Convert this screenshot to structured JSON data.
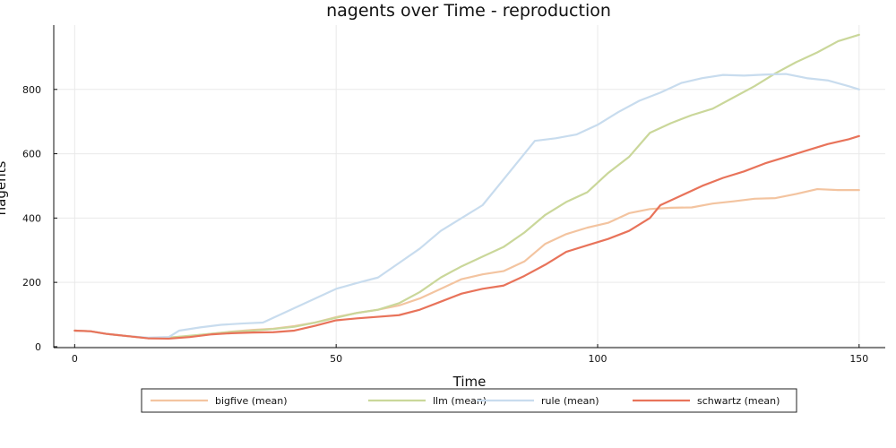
{
  "chart_data": {
    "type": "line",
    "title": "nagents over Time - reproduction",
    "xlabel": "Time",
    "ylabel": "nagents",
    "xlim": [
      -4,
      155
    ],
    "ylim": [
      -3,
      1000
    ],
    "xticks": [
      0,
      50,
      100,
      150
    ],
    "yticks": [
      0,
      200,
      400,
      600,
      800
    ],
    "grid": true,
    "legend": "bottom-outside",
    "series": [
      {
        "name": "bigfive (mean)",
        "color": "#f3c4a0",
        "points": [
          [
            0,
            50
          ],
          [
            3,
            48
          ],
          [
            6,
            40
          ],
          [
            10,
            33
          ],
          [
            14,
            27
          ],
          [
            18,
            28
          ],
          [
            22,
            33
          ],
          [
            26,
            40
          ],
          [
            30,
            47
          ],
          [
            34,
            52
          ],
          [
            38,
            56
          ],
          [
            42,
            64
          ],
          [
            46,
            75
          ],
          [
            50,
            92
          ],
          [
            54,
            105
          ],
          [
            58,
            115
          ],
          [
            62,
            128
          ],
          [
            66,
            150
          ],
          [
            70,
            180
          ],
          [
            74,
            210
          ],
          [
            78,
            225
          ],
          [
            82,
            235
          ],
          [
            86,
            265
          ],
          [
            90,
            320
          ],
          [
            94,
            350
          ],
          [
            98,
            370
          ],
          [
            102,
            385
          ],
          [
            106,
            415
          ],
          [
            110,
            428
          ],
          [
            114,
            432
          ],
          [
            118,
            433
          ],
          [
            122,
            445
          ],
          [
            126,
            452
          ],
          [
            130,
            460
          ],
          [
            134,
            462
          ],
          [
            138,
            475
          ],
          [
            142,
            490
          ],
          [
            146,
            487
          ],
          [
            150,
            487
          ]
        ]
      },
      {
        "name": "llm (mean)",
        "color": "#cad79a",
        "points": [
          [
            0,
            50
          ],
          [
            3,
            48
          ],
          [
            6,
            40
          ],
          [
            10,
            33
          ],
          [
            14,
            27
          ],
          [
            18,
            28
          ],
          [
            22,
            34
          ],
          [
            26,
            40
          ],
          [
            30,
            46
          ],
          [
            34,
            50
          ],
          [
            38,
            55
          ],
          [
            42,
            62
          ],
          [
            46,
            75
          ],
          [
            50,
            90
          ],
          [
            54,
            105
          ],
          [
            58,
            115
          ],
          [
            62,
            135
          ],
          [
            66,
            170
          ],
          [
            70,
            215
          ],
          [
            74,
            250
          ],
          [
            78,
            280
          ],
          [
            82,
            310
          ],
          [
            86,
            355
          ],
          [
            90,
            410
          ],
          [
            94,
            450
          ],
          [
            98,
            480
          ],
          [
            102,
            540
          ],
          [
            106,
            590
          ],
          [
            110,
            665
          ],
          [
            114,
            695
          ],
          [
            118,
            720
          ],
          [
            122,
            740
          ],
          [
            126,
            775
          ],
          [
            130,
            810
          ],
          [
            134,
            850
          ],
          [
            138,
            885
          ],
          [
            142,
            915
          ],
          [
            146,
            950
          ],
          [
            150,
            970
          ]
        ]
      },
      {
        "name": "rule (mean)",
        "color": "#c8dcee",
        "points": [
          [
            0,
            50
          ],
          [
            3,
            48
          ],
          [
            6,
            40
          ],
          [
            10,
            33
          ],
          [
            14,
            28
          ],
          [
            18,
            30
          ],
          [
            20,
            50
          ],
          [
            24,
            60
          ],
          [
            28,
            68
          ],
          [
            32,
            72
          ],
          [
            36,
            75
          ],
          [
            38,
            90
          ],
          [
            42,
            120
          ],
          [
            46,
            150
          ],
          [
            50,
            180
          ],
          [
            54,
            198
          ],
          [
            58,
            215
          ],
          [
            62,
            260
          ],
          [
            66,
            305
          ],
          [
            70,
            360
          ],
          [
            74,
            400
          ],
          [
            78,
            440
          ],
          [
            82,
            520
          ],
          [
            86,
            600
          ],
          [
            88,
            640
          ],
          [
            92,
            648
          ],
          [
            96,
            660
          ],
          [
            100,
            690
          ],
          [
            104,
            730
          ],
          [
            108,
            765
          ],
          [
            112,
            790
          ],
          [
            116,
            820
          ],
          [
            120,
            835
          ],
          [
            124,
            845
          ],
          [
            128,
            843
          ],
          [
            132,
            846
          ],
          [
            136,
            848
          ],
          [
            140,
            835
          ],
          [
            144,
            828
          ],
          [
            148,
            810
          ],
          [
            150,
            800
          ]
        ]
      },
      {
        "name": "schwartz (mean)",
        "color": "#e8735a",
        "points": [
          [
            0,
            50
          ],
          [
            3,
            48
          ],
          [
            6,
            40
          ],
          [
            10,
            33
          ],
          [
            14,
            26
          ],
          [
            18,
            25
          ],
          [
            22,
            30
          ],
          [
            26,
            38
          ],
          [
            30,
            42
          ],
          [
            34,
            44
          ],
          [
            38,
            45
          ],
          [
            42,
            50
          ],
          [
            46,
            65
          ],
          [
            50,
            82
          ],
          [
            54,
            88
          ],
          [
            58,
            93
          ],
          [
            62,
            98
          ],
          [
            66,
            115
          ],
          [
            70,
            140
          ],
          [
            74,
            165
          ],
          [
            78,
            180
          ],
          [
            82,
            190
          ],
          [
            86,
            220
          ],
          [
            90,
            255
          ],
          [
            94,
            295
          ],
          [
            98,
            315
          ],
          [
            102,
            335
          ],
          [
            106,
            360
          ],
          [
            110,
            400
          ],
          [
            112,
            440
          ],
          [
            116,
            470
          ],
          [
            120,
            500
          ],
          [
            124,
            525
          ],
          [
            128,
            545
          ],
          [
            132,
            570
          ],
          [
            136,
            590
          ],
          [
            140,
            610
          ],
          [
            144,
            630
          ],
          [
            148,
            645
          ],
          [
            150,
            655
          ]
        ]
      }
    ]
  }
}
